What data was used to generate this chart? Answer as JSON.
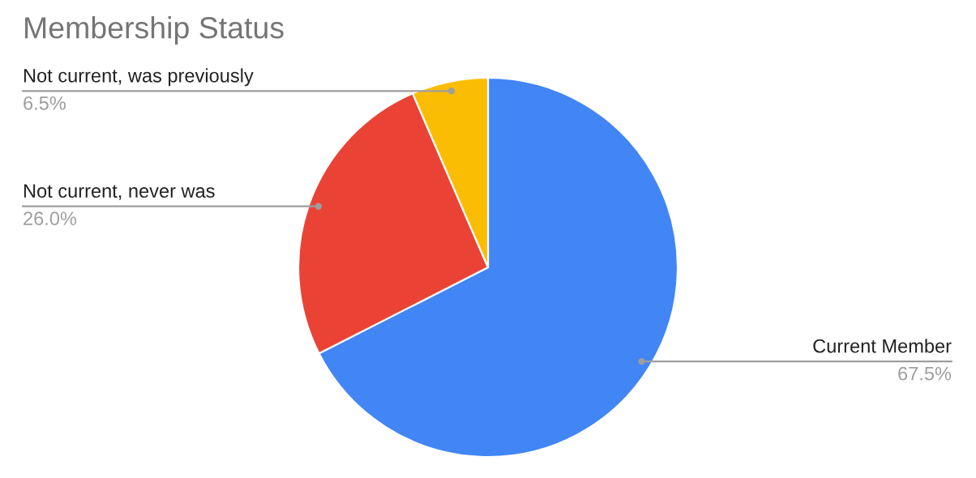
{
  "chart_data": {
    "type": "pie",
    "title": "Membership Status",
    "categories": [
      "Current Member",
      "Not current, never was",
      "Not current, was previously"
    ],
    "values": [
      67.5,
      26.0,
      6.5
    ],
    "colors": [
      "#4285f4",
      "#ea4335",
      "#fbbc04"
    ],
    "value_labels": [
      "67.5%",
      "26.0%",
      "6.5%"
    ],
    "legend": false
  }
}
